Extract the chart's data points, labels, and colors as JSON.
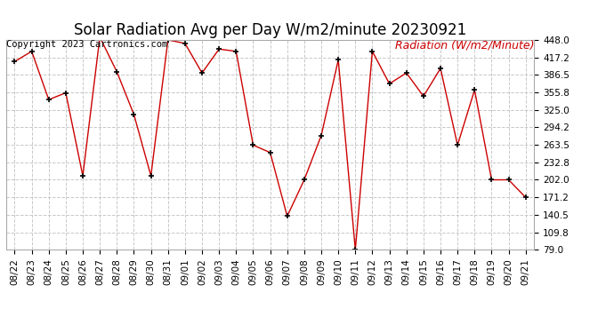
{
  "title": "Solar Radiation Avg per Day W/m2/minute 20230921",
  "copyright": "Copyright 2023 Cartronics.com",
  "legend_label": "Radiation (W/m2/Minute)",
  "dates": [
    "08/22",
    "08/23",
    "08/24",
    "08/25",
    "08/26",
    "08/27",
    "08/28",
    "08/29",
    "08/30",
    "08/31",
    "09/01",
    "09/02",
    "09/03",
    "09/04",
    "09/05",
    "09/06",
    "09/07",
    "09/08",
    "09/09",
    "09/10",
    "09/11",
    "09/12",
    "09/13",
    "09/14",
    "09/15",
    "09/16",
    "09/17",
    "09/18",
    "09/19",
    "09/20",
    "09/21"
  ],
  "values": [
    410,
    428,
    343,
    355,
    209,
    453,
    392,
    317,
    209,
    448,
    442,
    390,
    432,
    428,
    263,
    250,
    138,
    202,
    280,
    413,
    79,
    428,
    371,
    390,
    349,
    398,
    263,
    360,
    202,
    202,
    171
  ],
  "line_color": "#cc0000",
  "marker": "+",
  "marker_color": "#000000",
  "bg_color": "#ffffff",
  "grid_color": "#c8c8c8",
  "ylim": [
    79.0,
    448.0
  ],
  "yticks": [
    79.0,
    109.8,
    140.5,
    171.2,
    202.0,
    232.8,
    263.5,
    294.2,
    325.0,
    355.8,
    386.5,
    417.2,
    448.0
  ],
  "title_fontsize": 12,
  "copyright_fontsize": 7.5,
  "legend_fontsize": 9,
  "tick_fontsize": 7.5
}
